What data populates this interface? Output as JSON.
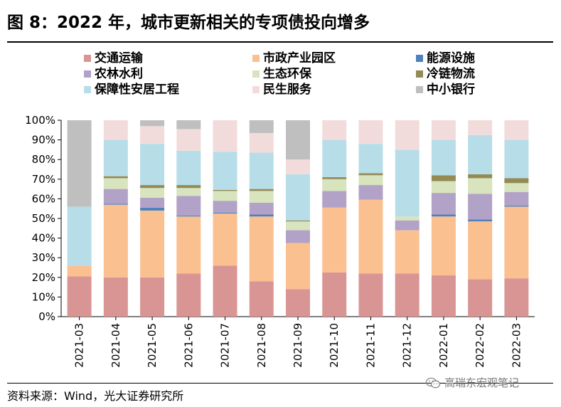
{
  "header": {
    "title": "图 8：2022 年，城市更新相关的专项债投向增多"
  },
  "footer": {
    "source": "资料来源：Wind，光大证券研究所",
    "watermark": "高瑞东宏观笔记",
    "watermark_icon": "wechat-icon"
  },
  "chart_data": {
    "type": "bar",
    "stacked": true,
    "title": "",
    "xlabel": "",
    "ylabel": "",
    "ylim": [
      0,
      100
    ],
    "yticks": [
      "0%",
      "10%",
      "20%",
      "30%",
      "40%",
      "50%",
      "60%",
      "70%",
      "80%",
      "90%",
      "100%"
    ],
    "legend_placement": "top",
    "grid": false,
    "categories": [
      "2021-03",
      "2021-04",
      "2021-05",
      "2021-06",
      "2021-07",
      "2021-08",
      "2021-09",
      "2021-10",
      "2021-11",
      "2021-12",
      "2022-01",
      "2022-02",
      "2022-03"
    ],
    "series": [
      {
        "name": "交通运输",
        "color": "#D99594",
        "values": [
          20.5,
          20.0,
          20.0,
          22.0,
          26.0,
          18.0,
          14.0,
          22.5,
          22.0,
          22.0,
          21.0,
          19.0,
          19.5
        ]
      },
      {
        "name": "市政产业园区",
        "color": "#FAC090",
        "values": [
          5.5,
          37.0,
          34.0,
          29.0,
          26.5,
          33.0,
          23.5,
          33.0,
          37.5,
          22.0,
          30.0,
          29.5,
          36.5
        ]
      },
      {
        "name": "能源设施",
        "color": "#4F81BD",
        "values": [
          0.0,
          0.5,
          1.5,
          0.5,
          0.5,
          1.0,
          0.0,
          0.0,
          0.0,
          0.0,
          1.0,
          1.0,
          0.5
        ]
      },
      {
        "name": "农林水利",
        "color": "#B3A2C7",
        "values": [
          0.0,
          7.5,
          5.0,
          10.0,
          6.0,
          6.0,
          6.5,
          8.5,
          7.5,
          5.0,
          11.0,
          13.0,
          7.0
        ]
      },
      {
        "name": "生态环保",
        "color": "#D7E4BD",
        "values": [
          0.0,
          5.5,
          5.0,
          4.0,
          5.0,
          6.0,
          4.5,
          6.0,
          5.0,
          2.0,
          6.0,
          8.0,
          4.5
        ]
      },
      {
        "name": "冷链物流",
        "color": "#948A54",
        "values": [
          0.0,
          1.0,
          1.5,
          1.5,
          0.5,
          1.0,
          0.5,
          1.0,
          1.0,
          0.0,
          3.0,
          2.0,
          2.5
        ]
      },
      {
        "name": "保障性安居工程",
        "color": "#B7DEE8",
        "values": [
          30.0,
          18.5,
          21.0,
          17.5,
          19.5,
          18.5,
          23.5,
          19.0,
          15.0,
          34.0,
          18.0,
          20.0,
          19.5
        ]
      },
      {
        "name": "民生服务",
        "color": "#F2DCDB",
        "values": [
          0.0,
          10.0,
          9.0,
          11.0,
          16.0,
          10.0,
          7.5,
          10.0,
          12.0,
          15.0,
          10.0,
          7.5,
          10.0
        ]
      },
      {
        "name": "中小银行",
        "color": "#BFBFBF",
        "values": [
          44.0,
          0.0,
          3.0,
          4.5,
          0.0,
          6.5,
          20.0,
          0.0,
          0.0,
          0.0,
          0.0,
          0.0,
          0.0
        ]
      }
    ]
  }
}
